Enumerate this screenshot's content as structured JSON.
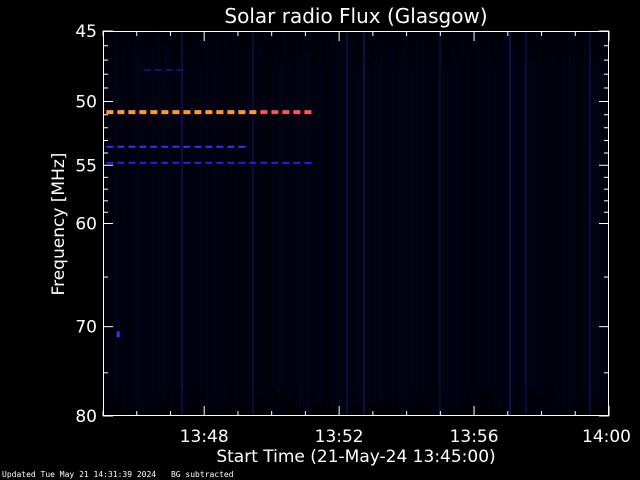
{
  "chart_data": {
    "type": "heatmap",
    "title": "Solar radio Flux (Glasgow)",
    "xlabel": "Start Time (21-May-24 13:45:00)",
    "ylabel": "Frequency [MHz]",
    "x_ticks": [
      "13:48",
      "13:52",
      "13:56",
      "14:00"
    ],
    "y_ticks": [
      45,
      50,
      55,
      60,
      70,
      80
    ],
    "xlim_minutes_after_start": [
      0,
      15
    ],
    "ylim": [
      45,
      80
    ],
    "y_scale": "log",
    "grid": false,
    "colormap": "black-blue-red-orange",
    "features": [
      {
        "freq_mhz": 50.8,
        "t_start_min": 0.1,
        "t_end_min": 6.2,
        "color": "#ff9933",
        "end_color": "#ff5555",
        "style": "dashed"
      },
      {
        "freq_mhz": 53.5,
        "t_start_min": 0.1,
        "t_end_min": 4.3,
        "color": "#3333ff",
        "style": "dashed"
      },
      {
        "freq_mhz": 54.8,
        "t_start_min": 0.1,
        "t_end_min": 6.2,
        "color": "#2222ee",
        "style": "dashed"
      },
      {
        "freq_mhz": 47.7,
        "t_start_min": 1.2,
        "t_end_min": 2.5,
        "color": "#12126a",
        "style": "dashed"
      },
      {
        "freq_mhz": 70.8,
        "t_start_min": 0.45,
        "t_end_min": 0.55,
        "color": "#3333ff",
        "style": "dot"
      }
    ]
  },
  "footer": {
    "updated": "Updated Tue May 21 14:31:39 2024",
    "note": "BG subtracted"
  }
}
